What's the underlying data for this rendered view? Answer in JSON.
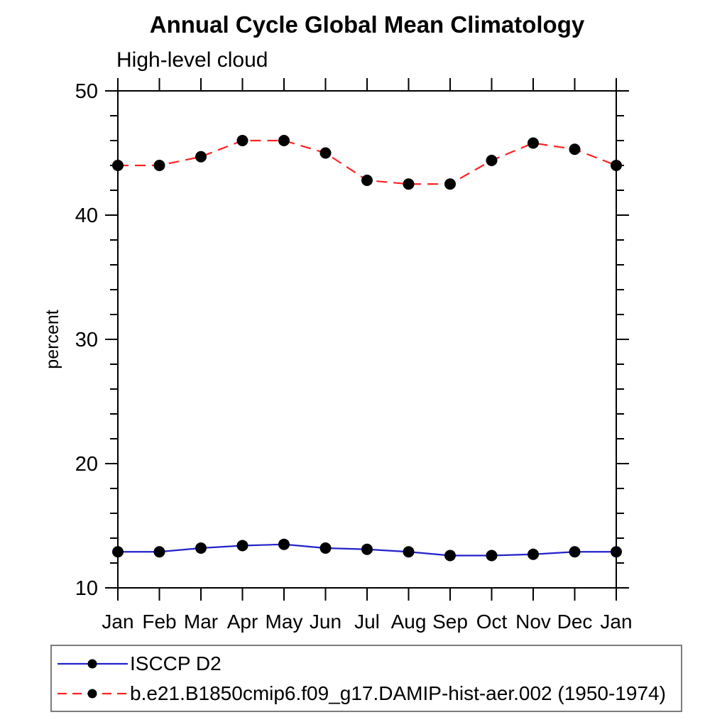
{
  "chart_data": {
    "type": "line",
    "title": "Annual Cycle Global Mean Climatology",
    "subtitle": "High-level cloud",
    "ylabel": "percent",
    "xlabel": "",
    "categories": [
      "Jan",
      "Feb",
      "Mar",
      "Apr",
      "May",
      "Jun",
      "Jul",
      "Aug",
      "Sep",
      "Oct",
      "Nov",
      "Dec",
      "Jan"
    ],
    "ylim": [
      10,
      50
    ],
    "yticks": [
      10,
      20,
      30,
      40,
      50
    ],
    "minor_tick_step": 2,
    "grid": "off",
    "legend_position": "bottom-left",
    "frame_color": "#000000",
    "marker_color": "#000000",
    "series": [
      {
        "name": "ISCCP D2",
        "color": "#2222cc",
        "style": "solid",
        "marker": "filled-circle",
        "values": [
          12.9,
          12.9,
          13.2,
          13.4,
          13.5,
          13.2,
          13.1,
          12.9,
          12.6,
          12.6,
          12.7,
          12.9,
          12.9
        ]
      },
      {
        "name": "b.e21.B1850cmip6.f09_g17.DAMIP-hist-aer.002 (1950-1974)",
        "color": "#ff2222",
        "style": "dashed",
        "marker": "filled-circle",
        "values": [
          44.0,
          44.0,
          44.7,
          46.0,
          46.0,
          45.0,
          42.8,
          42.5,
          42.5,
          44.4,
          45.8,
          45.3,
          44.0
        ]
      }
    ]
  }
}
